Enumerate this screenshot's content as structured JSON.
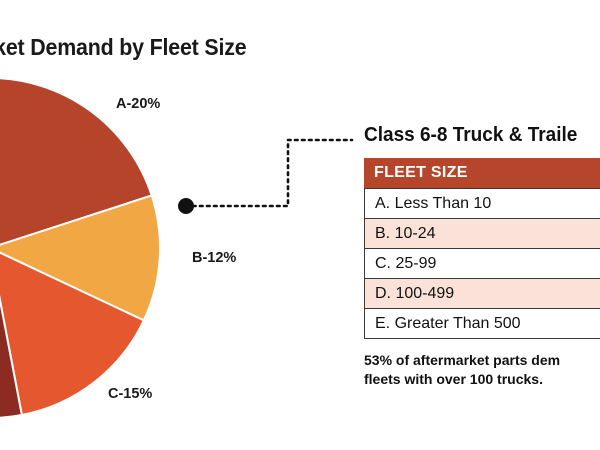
{
  "title": "rket Demand by Fleet Size",
  "chart_data": {
    "type": "pie",
    "title": "rket Demand by Fleet Size",
    "slices": [
      {
        "label": "A-20%",
        "value": 20,
        "color": "#b5442a"
      },
      {
        "label": "B-12%",
        "value": 12,
        "color": "#f2a745"
      },
      {
        "label": "C-15%",
        "value": 15,
        "color": "#e5582f"
      },
      {
        "label": "",
        "value": null,
        "color": "#8c2b21"
      }
    ],
    "legend": "table on right"
  },
  "table": {
    "heading": "Class 6-8 Truck & Traile",
    "header": "FLEET SIZE",
    "rows": [
      "A. Less Than 10",
      "B. 10-24",
      "C. 25-99",
      "D. 100-499",
      "E. Greater Than 500"
    ],
    "header_color": "#b5462b",
    "alt_row_color": "#fbe2d8"
  },
  "note": {
    "line1": "53% of aftermarket parts dem",
    "line2": "fleets with over 100 trucks."
  }
}
